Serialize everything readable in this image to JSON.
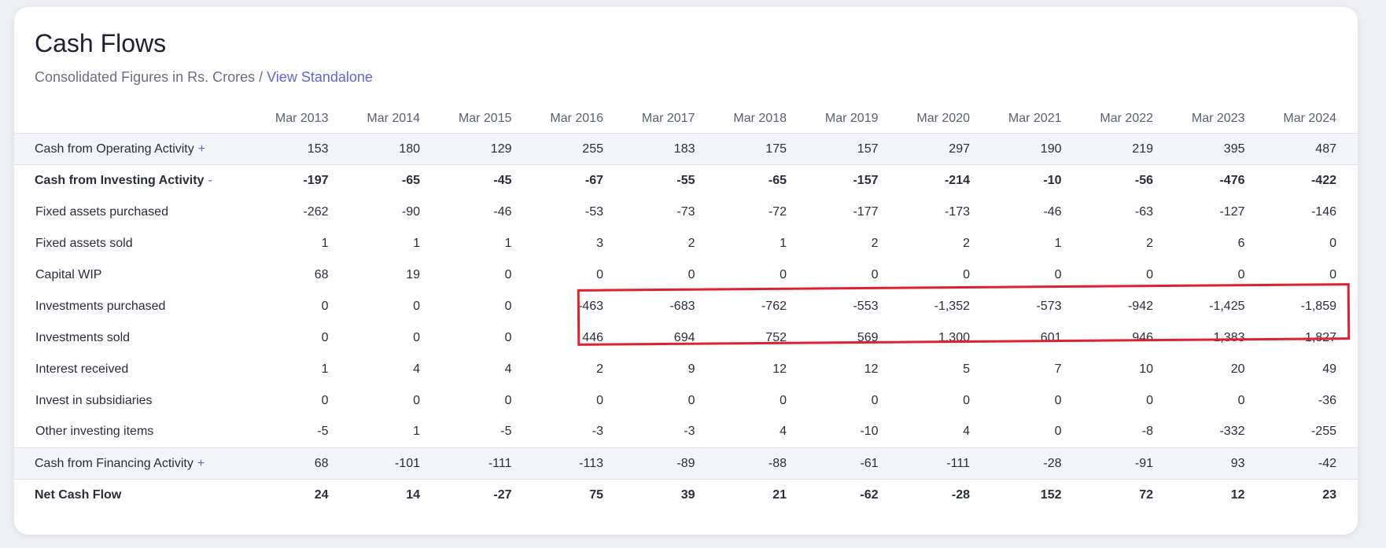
{
  "section": {
    "title": "Cash Flows",
    "subtitle_text": "Consolidated Figures in Rs. Crores / ",
    "subtitle_link": "View Standalone"
  },
  "table": {
    "years": [
      "Mar 2013",
      "Mar 2014",
      "Mar 2015",
      "Mar 2016",
      "Mar 2017",
      "Mar 2018",
      "Mar 2019",
      "Mar 2020",
      "Mar 2021",
      "Mar 2022",
      "Mar 2023",
      "Mar 2024"
    ],
    "rows": [
      {
        "label": "Cash from Operating Activity",
        "toggle": "+",
        "style": "section",
        "values": [
          "153",
          "180",
          "129",
          "255",
          "183",
          "175",
          "157",
          "297",
          "190",
          "219",
          "395",
          "487"
        ]
      },
      {
        "label": "Cash from Investing Activity",
        "toggle": "-",
        "style": "bold",
        "values": [
          "-197",
          "-65",
          "-45",
          "-67",
          "-55",
          "-65",
          "-157",
          "-214",
          "-10",
          "-56",
          "-476",
          "-422"
        ]
      },
      {
        "label": "Fixed assets purchased",
        "toggle": "",
        "style": "sub",
        "values": [
          "-262",
          "-90",
          "-46",
          "-53",
          "-73",
          "-72",
          "-177",
          "-173",
          "-46",
          "-63",
          "-127",
          "-146"
        ]
      },
      {
        "label": "Fixed assets sold",
        "toggle": "",
        "style": "sub",
        "values": [
          "1",
          "1",
          "1",
          "3",
          "2",
          "1",
          "2",
          "2",
          "1",
          "2",
          "6",
          "0"
        ]
      },
      {
        "label": "Capital WIP",
        "toggle": "",
        "style": "sub",
        "values": [
          "68",
          "19",
          "0",
          "0",
          "0",
          "0",
          "0",
          "0",
          "0",
          "0",
          "0",
          "0"
        ]
      },
      {
        "label": "Investments purchased",
        "toggle": "",
        "style": "sub",
        "values": [
          "0",
          "0",
          "0",
          "-463",
          "-683",
          "-762",
          "-553",
          "-1,352",
          "-573",
          "-942",
          "-1,425",
          "-1,859"
        ]
      },
      {
        "label": "Investments sold",
        "toggle": "",
        "style": "sub",
        "values": [
          "0",
          "0",
          "0",
          "446",
          "694",
          "752",
          "569",
          "1,300",
          "601",
          "946",
          "1,383",
          "1,827"
        ]
      },
      {
        "label": "Interest received",
        "toggle": "",
        "style": "sub",
        "values": [
          "1",
          "4",
          "4",
          "2",
          "9",
          "12",
          "12",
          "5",
          "7",
          "10",
          "20",
          "49"
        ]
      },
      {
        "label": "Invest in subsidiaries",
        "toggle": "",
        "style": "sub",
        "values": [
          "0",
          "0",
          "0",
          "0",
          "0",
          "0",
          "0",
          "0",
          "0",
          "0",
          "0",
          "-36"
        ]
      },
      {
        "label": "Other investing items",
        "toggle": "",
        "style": "sub",
        "values": [
          "-5",
          "1",
          "-5",
          "-3",
          "-3",
          "4",
          "-10",
          "4",
          "0",
          "-8",
          "-332",
          "-255"
        ]
      },
      {
        "label": "Cash from Financing Activity",
        "toggle": "+",
        "style": "section",
        "values": [
          "68",
          "-101",
          "-111",
          "-113",
          "-89",
          "-88",
          "-61",
          "-111",
          "-28",
          "-91",
          "93",
          "-42"
        ]
      },
      {
        "label": "Net Cash Flow",
        "toggle": "",
        "style": "bold",
        "values": [
          "24",
          "14",
          "-27",
          "75",
          "39",
          "21",
          "-62",
          "-28",
          "152",
          "72",
          "12",
          "23"
        ]
      }
    ]
  },
  "colors": {
    "accent": "#6064d8",
    "highlight": "#e0202f",
    "section_bg": "#f4f5fa"
  }
}
